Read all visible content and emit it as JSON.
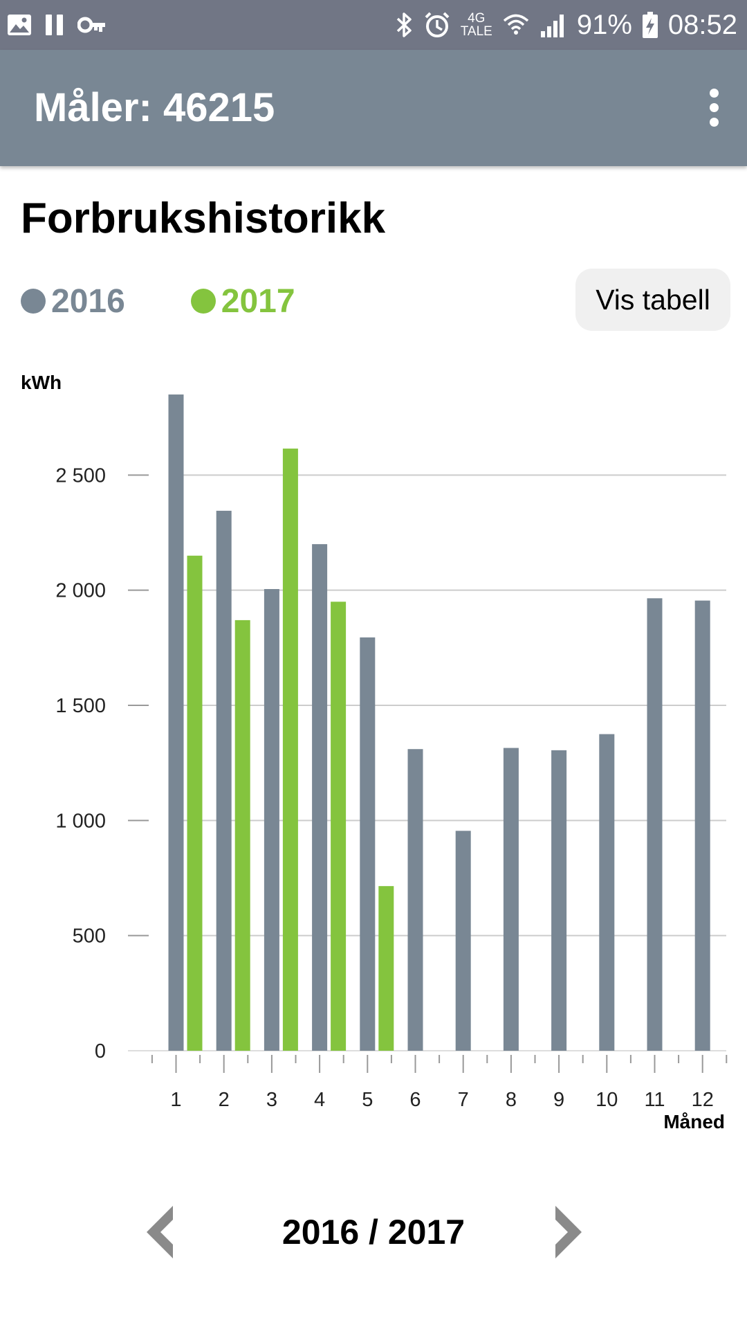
{
  "status_bar": {
    "network_top": "4G",
    "network_bottom": "TALE",
    "battery": "91%",
    "time": "08:52"
  },
  "app_bar": {
    "title": "Måler: 46215"
  },
  "page": {
    "title": "Forbrukshistorikk",
    "table_button": "Vis tabell",
    "period": "2016 / 2017"
  },
  "colors": {
    "series_2016": "#798794",
    "series_2017": "#84c43e",
    "app_bar": "#798794",
    "status_bar": "#717685"
  },
  "icons": {
    "status_left": [
      "image-icon",
      "pause-icon",
      "key-icon"
    ],
    "status_right": [
      "bluetooth-icon",
      "alarm-icon",
      "wifi-icon",
      "signal-icon",
      "battery-charging-icon"
    ],
    "app_bar": "more-vert-icon",
    "navigation": [
      "chevron-left-icon",
      "chevron-right-icon"
    ]
  },
  "chart_data": {
    "type": "bar",
    "categories": [
      "1",
      "2",
      "3",
      "4",
      "5",
      "6",
      "7",
      "8",
      "9",
      "10",
      "11",
      "12"
    ],
    "series": [
      {
        "name": "2016",
        "values": [
          2850,
          2345,
          2005,
          2200,
          1795,
          1310,
          955,
          1315,
          1305,
          1375,
          1965,
          1955
        ]
      },
      {
        "name": "2017",
        "values": [
          2150,
          1870,
          2615,
          1950,
          715,
          null,
          null,
          null,
          null,
          null,
          null,
          null
        ]
      }
    ],
    "ylabel": "kWh",
    "xlabel": "Måned",
    "ylim": [
      0,
      3000
    ],
    "yticks": [
      0,
      500,
      1000,
      1500,
      2000,
      2500
    ],
    "ytick_labels": [
      "0",
      "500",
      "1 000",
      "1 500",
      "2 000",
      "2 500"
    ],
    "grid": true,
    "legend": "top-left"
  }
}
